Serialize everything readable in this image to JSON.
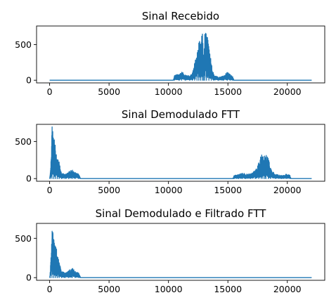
{
  "chart_data": [
    {
      "type": "line",
      "title": "Sinal Recebido",
      "xlim": [
        0,
        22050
      ],
      "ylim": [
        0,
        750
      ],
      "xticks": [
        0,
        5000,
        10000,
        15000,
        20000
      ],
      "yticks": [
        0,
        500
      ],
      "color": "#1f77b4",
      "envelope": [
        {
          "x": 0,
          "y": 0
        },
        {
          "x": 10400,
          "y": 0
        },
        {
          "x": 10500,
          "y": 70
        },
        {
          "x": 10900,
          "y": 90
        },
        {
          "x": 11100,
          "y": 120
        },
        {
          "x": 11400,
          "y": 80
        },
        {
          "x": 11800,
          "y": 60
        },
        {
          "x": 12000,
          "y": 110
        },
        {
          "x": 12200,
          "y": 250
        },
        {
          "x": 12400,
          "y": 380
        },
        {
          "x": 12550,
          "y": 580
        },
        {
          "x": 12700,
          "y": 610
        },
        {
          "x": 12850,
          "y": 720
        },
        {
          "x": 12950,
          "y": 300
        },
        {
          "x": 13050,
          "y": 690
        },
        {
          "x": 13200,
          "y": 640
        },
        {
          "x": 13400,
          "y": 530
        },
        {
          "x": 13600,
          "y": 250
        },
        {
          "x": 13800,
          "y": 80
        },
        {
          "x": 14200,
          "y": 40
        },
        {
          "x": 14600,
          "y": 60
        },
        {
          "x": 14950,
          "y": 120
        },
        {
          "x": 15200,
          "y": 80
        },
        {
          "x": 15400,
          "y": 50
        },
        {
          "x": 15500,
          "y": 0
        },
        {
          "x": 22050,
          "y": 0
        }
      ]
    },
    {
      "type": "line",
      "title": "Sinal Demodulado FTT",
      "xlim": [
        0,
        22050
      ],
      "ylim": [
        0,
        720
      ],
      "xticks": [
        0,
        5000,
        10000,
        15000,
        20000
      ],
      "yticks": [
        0,
        500
      ],
      "color": "#1f77b4",
      "envelope": [
        {
          "x": 0,
          "y": 0
        },
        {
          "x": 50,
          "y": 100
        },
        {
          "x": 200,
          "y": 700
        },
        {
          "x": 350,
          "y": 600
        },
        {
          "x": 500,
          "y": 400
        },
        {
          "x": 650,
          "y": 300
        },
        {
          "x": 800,
          "y": 220
        },
        {
          "x": 1000,
          "y": 80
        },
        {
          "x": 1300,
          "y": 60
        },
        {
          "x": 1600,
          "y": 90
        },
        {
          "x": 1900,
          "y": 130
        },
        {
          "x": 2150,
          "y": 80
        },
        {
          "x": 2450,
          "y": 60
        },
        {
          "x": 2600,
          "y": 0
        },
        {
          "x": 15400,
          "y": 0
        },
        {
          "x": 15500,
          "y": 40
        },
        {
          "x": 15900,
          "y": 60
        },
        {
          "x": 16200,
          "y": 80
        },
        {
          "x": 16500,
          "y": 60
        },
        {
          "x": 16900,
          "y": 70
        },
        {
          "x": 17300,
          "y": 110
        },
        {
          "x": 17600,
          "y": 250
        },
        {
          "x": 17800,
          "y": 310
        },
        {
          "x": 17950,
          "y": 360
        },
        {
          "x": 18100,
          "y": 300
        },
        {
          "x": 18200,
          "y": 350
        },
        {
          "x": 18400,
          "y": 280
        },
        {
          "x": 18600,
          "y": 130
        },
        {
          "x": 19000,
          "y": 60
        },
        {
          "x": 19500,
          "y": 40
        },
        {
          "x": 19900,
          "y": 60
        },
        {
          "x": 20200,
          "y": 50
        },
        {
          "x": 20300,
          "y": 0
        },
        {
          "x": 22050,
          "y": 0
        }
      ]
    },
    {
      "type": "line",
      "title": "Sinal Demodulado e Filtrado FTT",
      "xlim": [
        0,
        22050
      ],
      "ylim": [
        0,
        680
      ],
      "xticks": [
        0,
        5000,
        10000,
        15000,
        20000
      ],
      "yticks": [
        0,
        500
      ],
      "color": "#1f77b4",
      "envelope": [
        {
          "x": 0,
          "y": 0
        },
        {
          "x": 50,
          "y": 100
        },
        {
          "x": 200,
          "y": 660
        },
        {
          "x": 350,
          "y": 580
        },
        {
          "x": 500,
          "y": 420
        },
        {
          "x": 650,
          "y": 300
        },
        {
          "x": 800,
          "y": 200
        },
        {
          "x": 1000,
          "y": 80
        },
        {
          "x": 1300,
          "y": 60
        },
        {
          "x": 1600,
          "y": 90
        },
        {
          "x": 1900,
          "y": 130
        },
        {
          "x": 2150,
          "y": 80
        },
        {
          "x": 2450,
          "y": 60
        },
        {
          "x": 2600,
          "y": 0
        },
        {
          "x": 22050,
          "y": 0
        }
      ]
    }
  ]
}
